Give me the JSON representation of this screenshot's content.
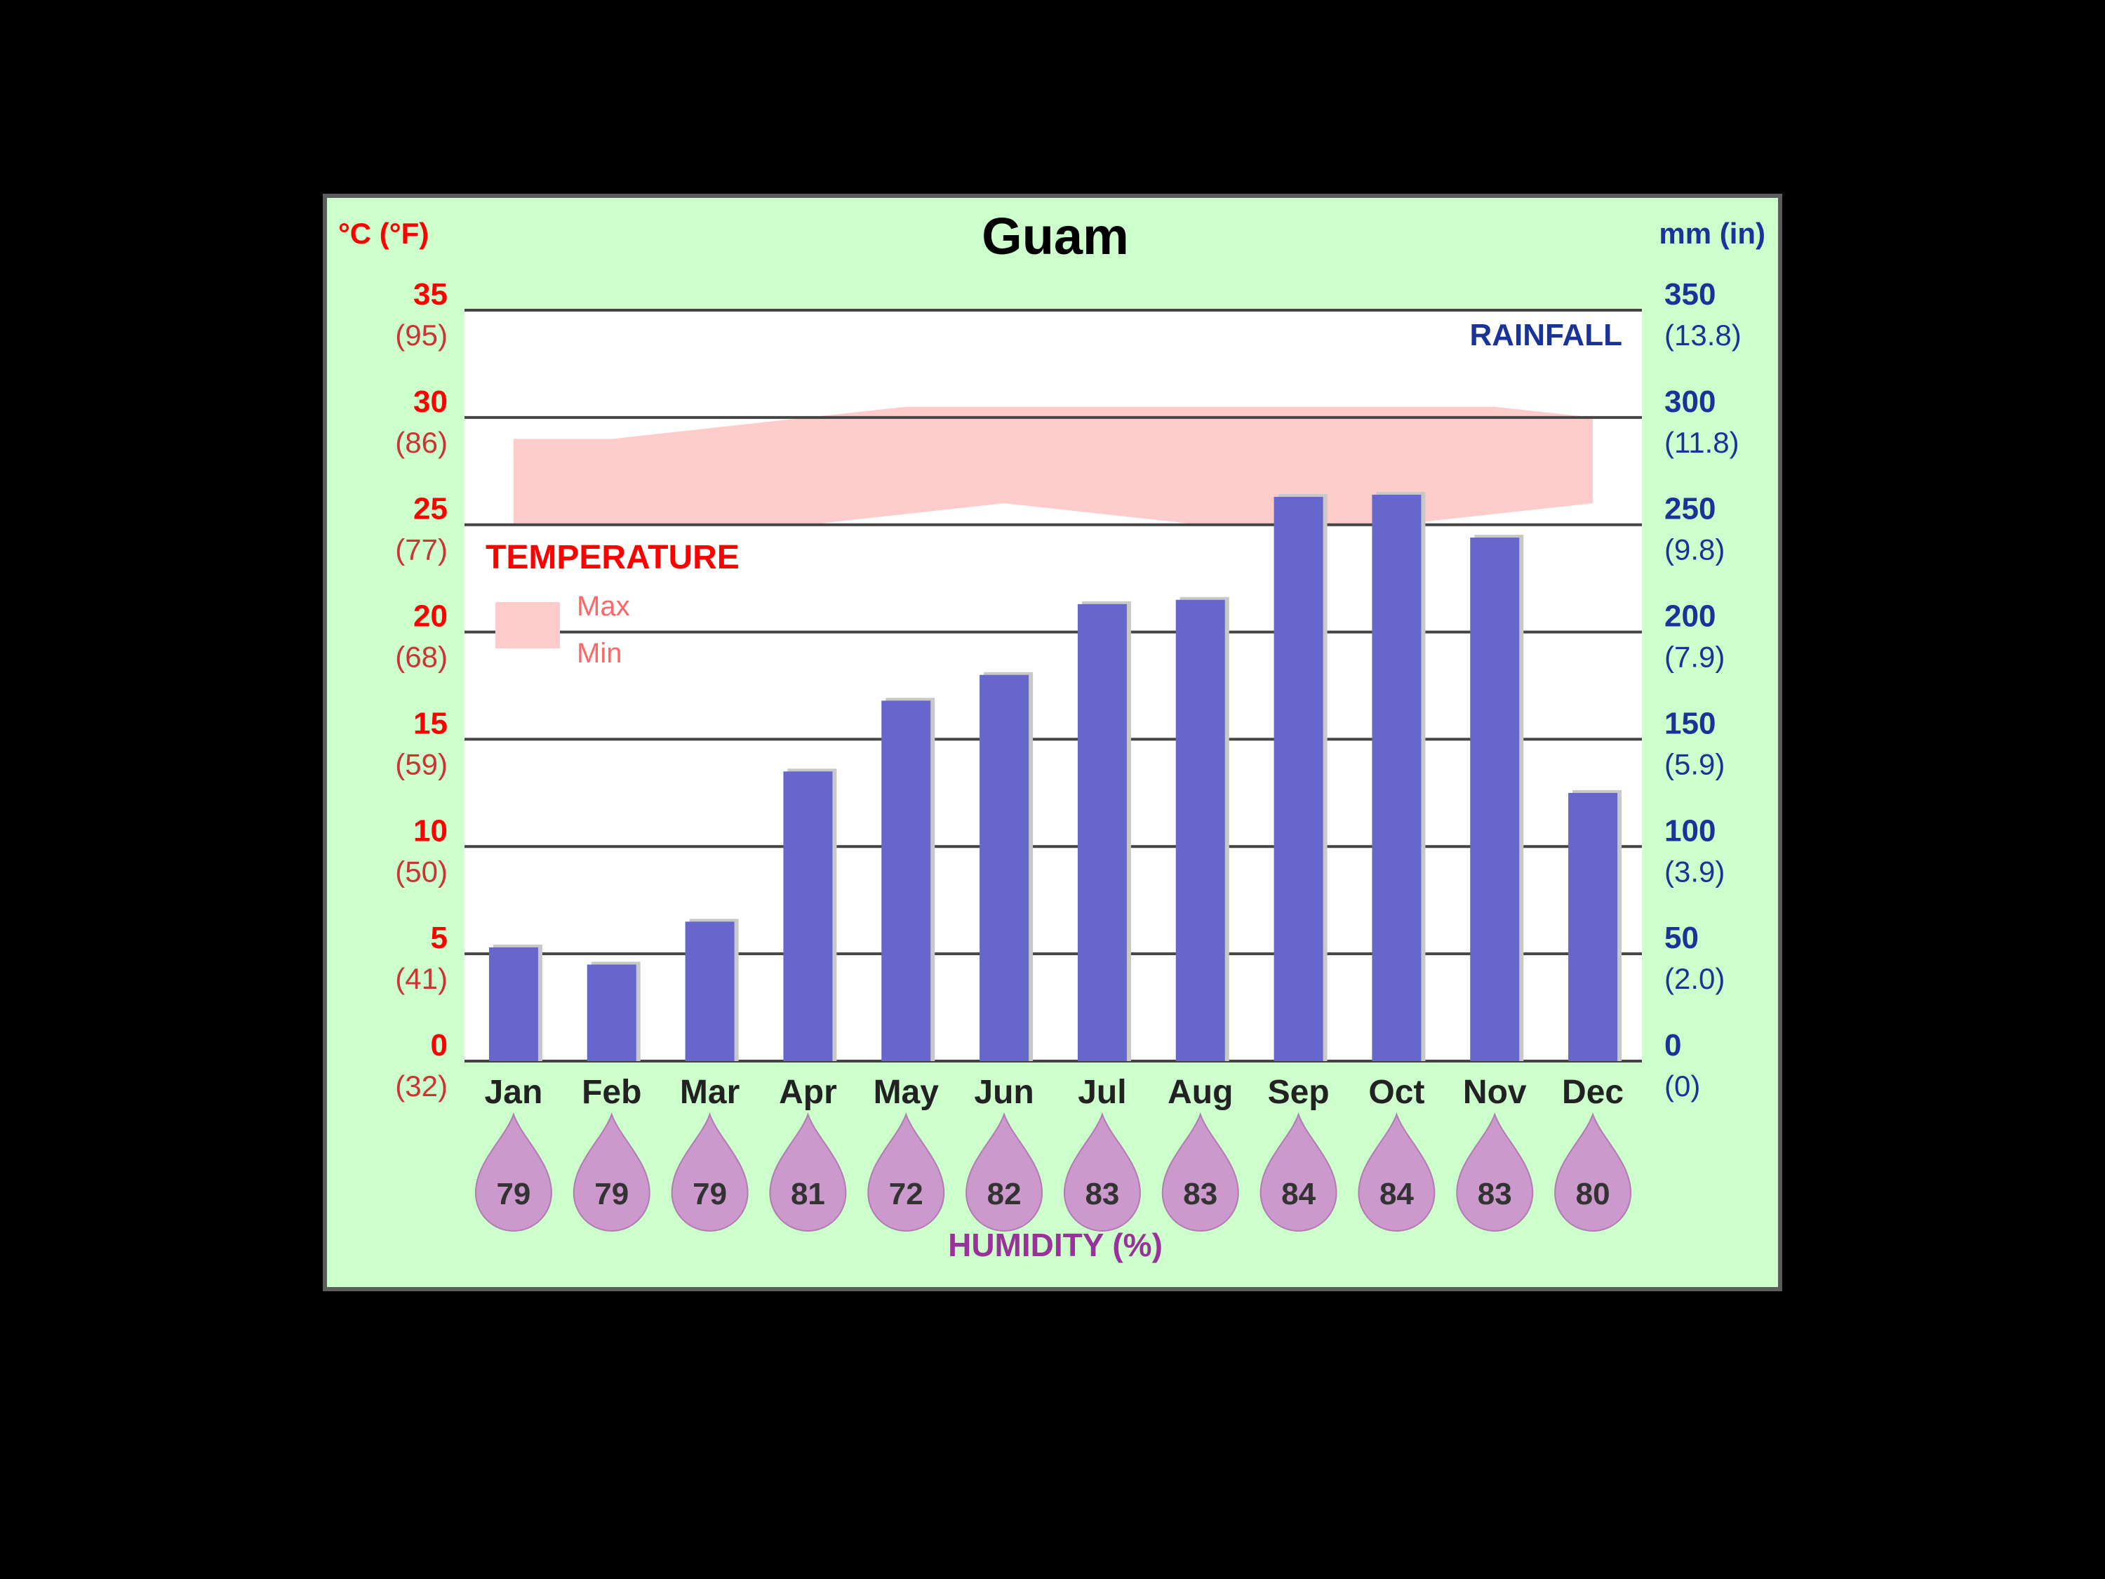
{
  "chart_data": {
    "type": "bar",
    "title": "Guam",
    "left_axis_label": "°C (°F)",
    "right_axis_label": "mm (in)",
    "categories": [
      "Jan",
      "Feb",
      "Mar",
      "Apr",
      "May",
      "Jun",
      "Jul",
      "Aug",
      "Sep",
      "Oct",
      "Nov",
      "Dec"
    ],
    "rainfall": {
      "label": "RAINFALL",
      "unit": "mm",
      "ylim": [
        0,
        350
      ],
      "values": [
        53,
        45,
        65,
        135,
        168,
        180,
        213,
        215,
        263,
        264,
        244,
        125
      ]
    },
    "temperature": {
      "label": "TEMPERATURE",
      "unit": "°C",
      "ylim": [
        0,
        35
      ],
      "max_label": "Max",
      "min_label": "Min",
      "max": [
        29,
        29,
        29.5,
        30,
        30.5,
        30.5,
        30.5,
        30.5,
        30.5,
        30.5,
        30.5,
        30
      ],
      "min": [
        25,
        25,
        25,
        25,
        25.5,
        26,
        25.5,
        25,
        25,
        25,
        25.5,
        26
      ]
    },
    "left_ticks": [
      {
        "c": "35",
        "f": "(95)"
      },
      {
        "c": "30",
        "f": "(86)"
      },
      {
        "c": "25",
        "f": "(77)"
      },
      {
        "c": "20",
        "f": "(68)"
      },
      {
        "c": "15",
        "f": "(59)"
      },
      {
        "c": "10",
        "f": "(50)"
      },
      {
        "c": "5",
        "f": "(41)"
      },
      {
        "c": "0",
        "f": "(32)"
      }
    ],
    "right_ticks": [
      {
        "mm": "350",
        "in": "(13.8)"
      },
      {
        "mm": "300",
        "in": "(11.8)"
      },
      {
        "mm": "250",
        "in": "(9.8)"
      },
      {
        "mm": "200",
        "in": "(7.9)"
      },
      {
        "mm": "150",
        "in": "(5.9)"
      },
      {
        "mm": "100",
        "in": "(3.9)"
      },
      {
        "mm": "50",
        "in": "(2.0)"
      },
      {
        "mm": "0",
        "in": "(0)"
      }
    ],
    "humidity": {
      "label": "HUMIDITY (%)",
      "values": [
        "79",
        "79",
        "79",
        "81",
        "72",
        "82",
        "83",
        "83",
        "84",
        "84",
        "83",
        "80"
      ]
    },
    "grid": true,
    "legend_position": "left, inside plot",
    "colors": {
      "background": "#ccffcc",
      "plot_background": "#ffffff",
      "rain_bar": "#6666cc",
      "bar_shadow": "#c8c8c8",
      "temperature_band": "#ffcccc",
      "celsius_text": "#ff0000",
      "fahrenheit_text": "#cc3333",
      "rain_axis_text": "#1a3399",
      "humidity": "#cc99cc",
      "humidity_label": "#993399",
      "grid": "#444444"
    }
  }
}
